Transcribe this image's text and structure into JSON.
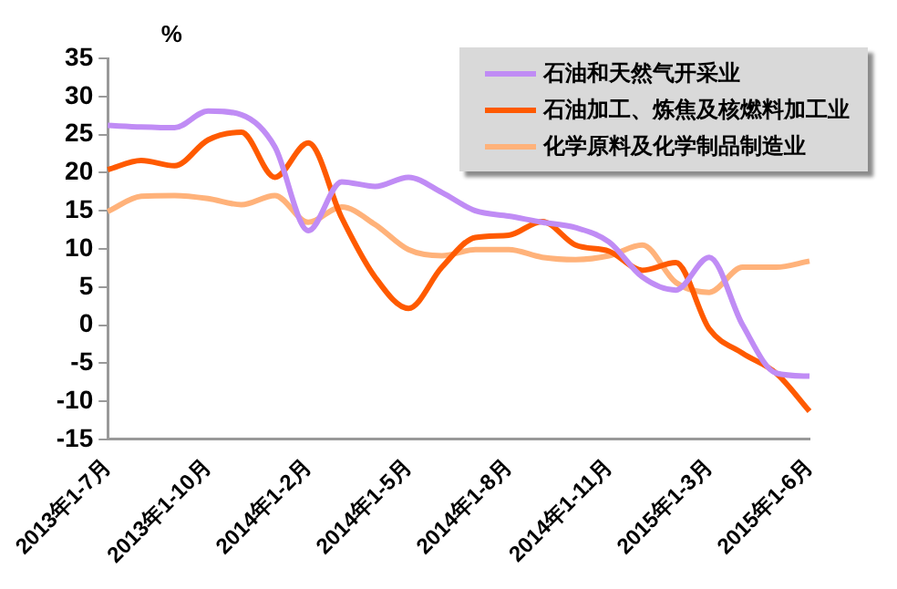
{
  "chart_data": {
    "type": "line",
    "ylabel": "%",
    "categories": [
      "2013年1-7月",
      null,
      null,
      "2013年1-10月",
      null,
      null,
      "2014年1-2月",
      null,
      null,
      "2014年1-5月",
      null,
      null,
      "2014年1-8月",
      null,
      null,
      "2014年1-11月",
      null,
      null,
      "2015年1-3月",
      null,
      null,
      "2015年1-6月"
    ],
    "series": [
      {
        "name": "石油和天然气开采业",
        "color": "#c08cf5",
        "values": [
          26.2,
          26,
          25.9,
          28.1,
          27.6,
          23.4,
          12.4,
          18.8,
          18.2,
          19.4,
          17.4,
          15,
          14.3,
          13.5,
          12.8,
          10.9,
          6.3,
          4.6,
          8.9,
          0,
          -6.3,
          -6.7
        ]
      },
      {
        "name": "石油加工、炼焦及核燃料加工业",
        "color": "#ff5a00",
        "values": [
          20.4,
          21.6,
          20.9,
          24.3,
          25.3,
          19.4,
          23.9,
          14.1,
          6.3,
          2.2,
          7.6,
          11.5,
          11.8,
          13.6,
          10.5,
          9.7,
          7.2,
          8.2,
          -0.5,
          -3.7,
          -6.3,
          -11.3
        ]
      },
      {
        "name": "化学原料及化学制品制造业",
        "color": "#ffb27a",
        "values": [
          14.9,
          16.9,
          17,
          16.6,
          15.8,
          17,
          13.5,
          15.5,
          13.2,
          9.9,
          9.1,
          9.9,
          9.9,
          8.9,
          8.6,
          9.1,
          10.5,
          5.6,
          4.3,
          7.6,
          7.6,
          8.4
        ]
      }
    ],
    "ylim": [
      -15,
      35
    ],
    "yticks": [
      -15,
      -10,
      -5,
      0,
      5,
      10,
      15,
      20,
      25,
      30,
      35
    ],
    "grid": false,
    "legend": "top right",
    "marker": "none",
    "line_style": "solid"
  }
}
